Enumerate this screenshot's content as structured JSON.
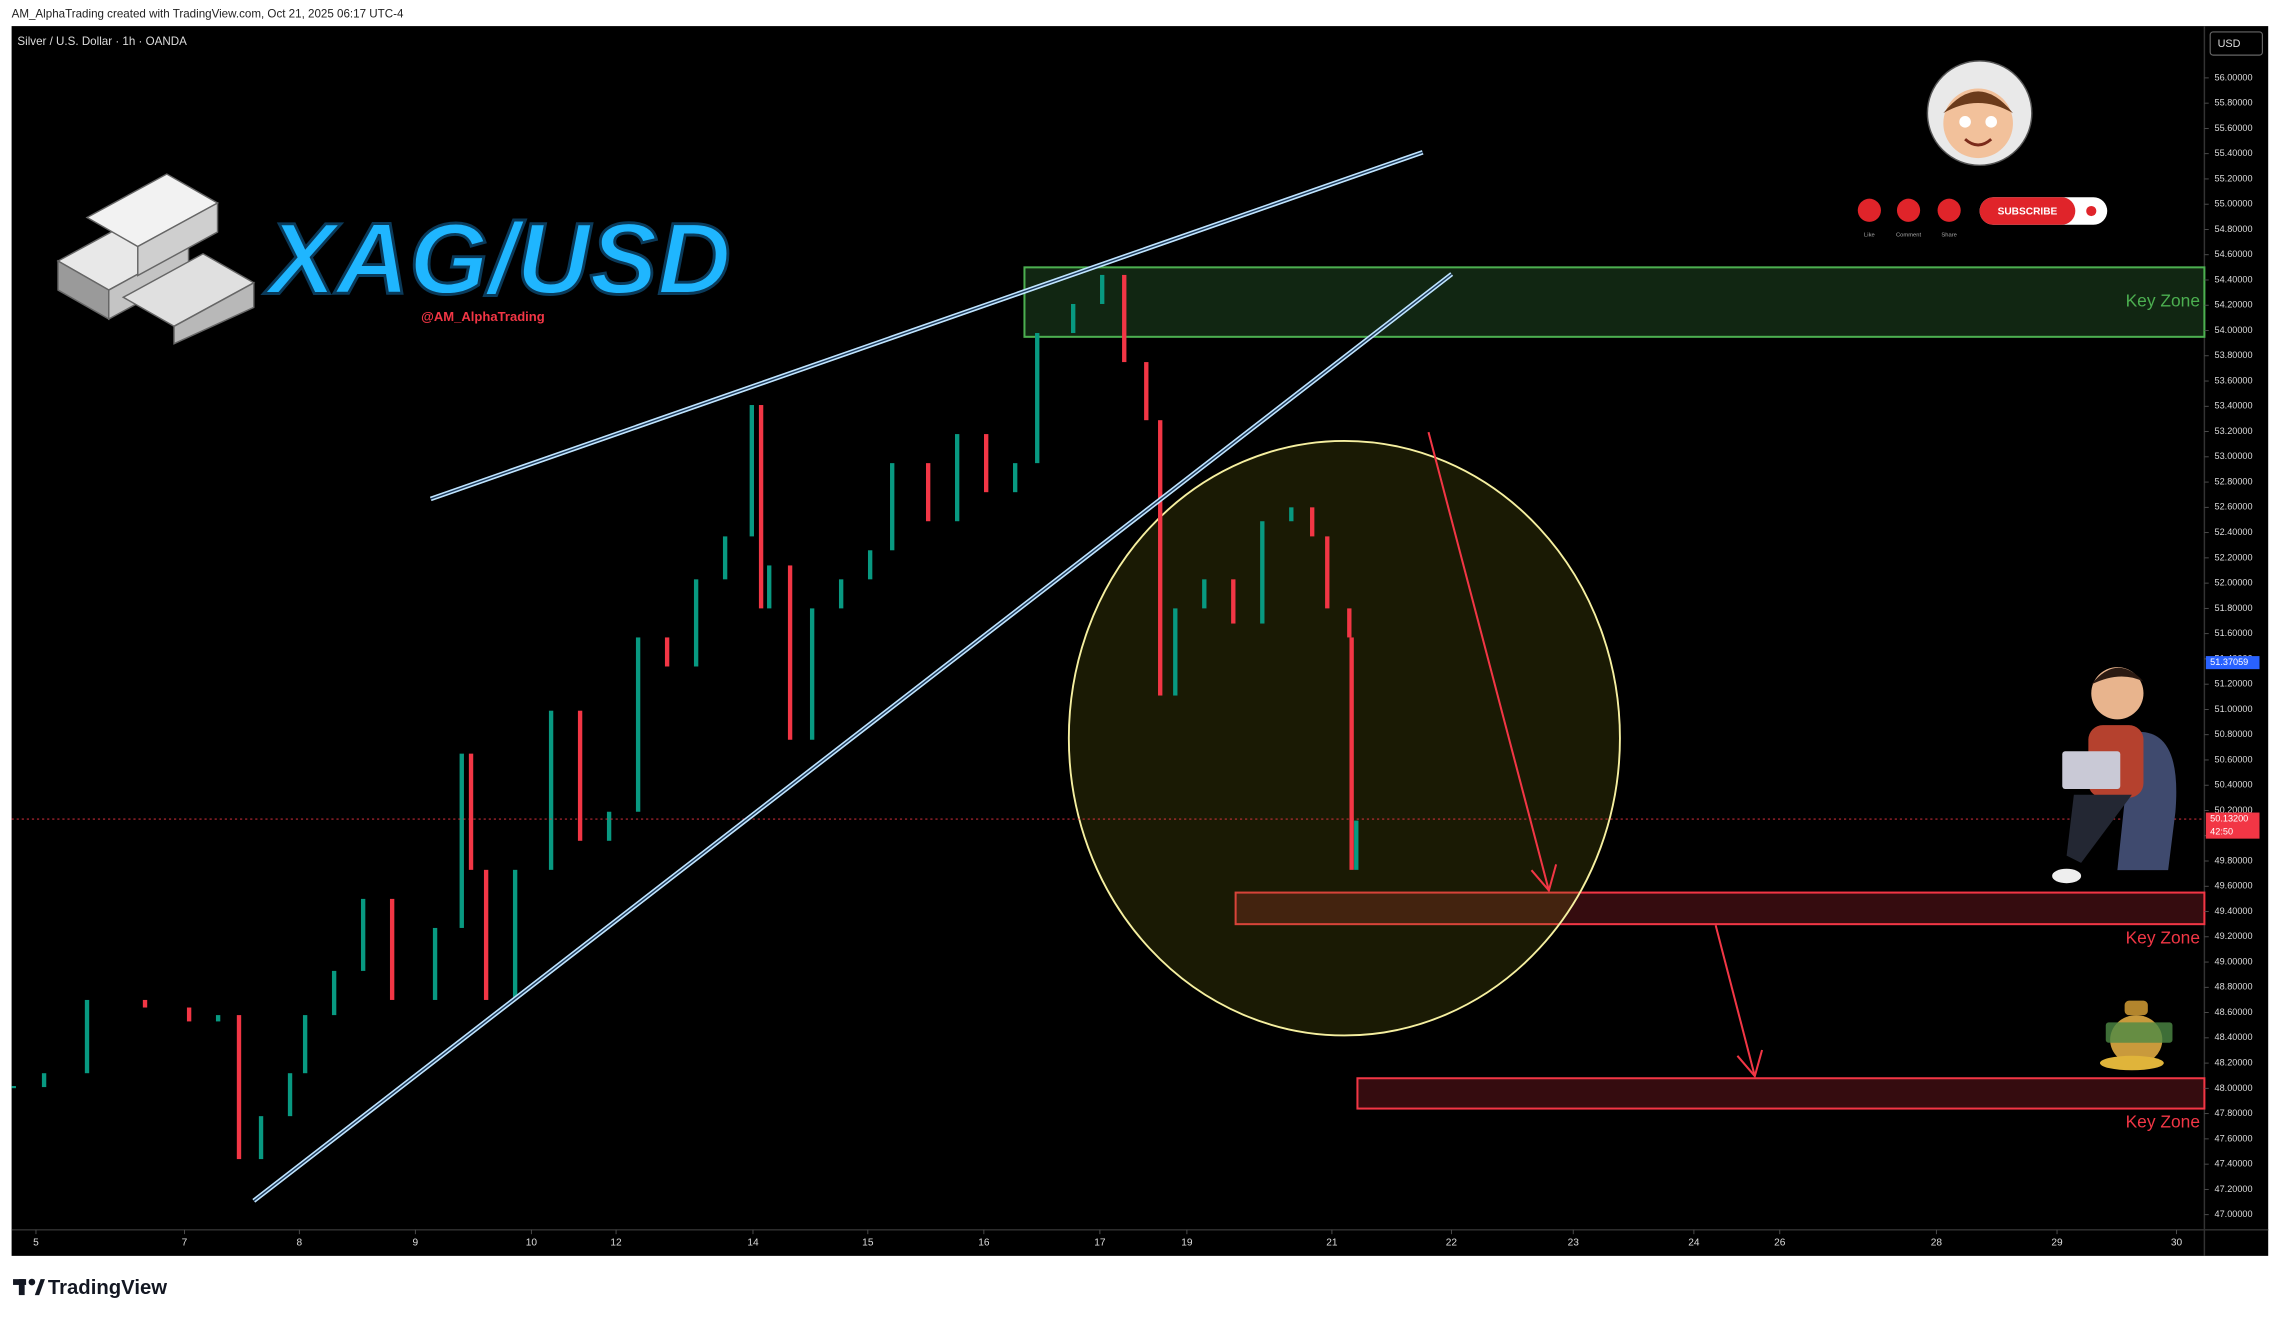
{
  "header": {
    "text": "AM_AlphaTrading created with TradingView.com, Oct 21, 2025 06:17 UTC-4"
  },
  "branding": {
    "logo": "XAG/USD",
    "handle": "@AM_AlphaTrading",
    "subscribe": "SUBSCRIBE",
    "like": "Like",
    "comment": "Comment",
    "share": "Share",
    "footer": "TradingView"
  },
  "chart_data": {
    "type": "candlestick",
    "title": "Silver / U.S. Dollar · 1h · OANDA",
    "currency": "USD",
    "x": [
      0,
      0.28,
      0.65,
      1.15,
      1.53,
      1.78,
      1.96,
      2.15,
      2.4,
      2.53,
      2.78,
      3.03,
      3.28,
      3.65,
      3.88,
      3.96,
      4.09,
      4.34,
      4.65,
      4.9,
      5.15,
      5.4,
      5.65,
      5.9,
      6.15,
      6.38,
      6.46,
      6.53,
      6.71,
      6.9,
      7.15,
      7.4,
      7.59,
      7.9,
      8.15,
      8.4,
      8.65,
      8.84,
      9.15,
      9.4,
      9.59,
      9.78,
      9.9,
      10.03,
      10.28,
      10.53,
      10.78,
      11.03,
      11.21,
      11.34,
      11.53,
      11.55,
      11.59
    ],
    "values": [
      48.01,
      48.12,
      48.7,
      48.64,
      48.53,
      48.58,
      47.44,
      47.78,
      48.12,
      48.58,
      48.93,
      49.5,
      48.7,
      49.27,
      50.65,
      49.73,
      48.7,
      49.73,
      50.99,
      49.96,
      50.19,
      51.57,
      51.34,
      52.03,
      52.37,
      53.41,
      51.8,
      52.14,
      50.76,
      51.8,
      52.03,
      52.26,
      52.95,
      52.49,
      53.18,
      52.72,
      52.95,
      53.98,
      54.21,
      54.44,
      53.75,
      53.29,
      51.11,
      51.8,
      52.03,
      51.68,
      52.49,
      52.6,
      52.37,
      51.8,
      51.57,
      49.73,
      50.12
    ],
    "up_color": "#089981",
    "down_color": "#f23645",
    "xlim": [
      0,
      18.9
    ],
    "xticks": [
      {
        "value": 0.21,
        "label": "5"
      },
      {
        "value": 1.49,
        "label": "7"
      },
      {
        "value": 2.48,
        "label": "8"
      },
      {
        "value": 3.48,
        "label": "9"
      },
      {
        "value": 4.48,
        "label": "10"
      },
      {
        "value": 5.21,
        "label": "12"
      },
      {
        "value": 6.39,
        "label": "14"
      },
      {
        "value": 7.38,
        "label": "15"
      },
      {
        "value": 8.38,
        "label": "16"
      },
      {
        "value": 9.38,
        "label": "17"
      },
      {
        "value": 10.13,
        "label": "19"
      },
      {
        "value": 11.38,
        "label": "21"
      },
      {
        "value": 12.41,
        "label": "22"
      },
      {
        "value": 13.46,
        "label": "23"
      },
      {
        "value": 14.5,
        "label": "24"
      },
      {
        "value": 15.24,
        "label": "26"
      },
      {
        "value": 16.59,
        "label": "28"
      },
      {
        "value": 17.63,
        "label": "29"
      },
      {
        "value": 18.66,
        "label": "30"
      }
    ],
    "ylim": [
      46.88,
      56.41
    ],
    "yticks": [
      {
        "value": 47,
        "label": "47.00000"
      },
      {
        "value": 47.2,
        "label": "47.20000"
      },
      {
        "value": 47.4,
        "label": "47.40000"
      },
      {
        "value": 47.6,
        "label": "47.60000"
      },
      {
        "value": 47.8,
        "label": "47.80000"
      },
      {
        "value": 48,
        "label": "48.00000"
      },
      {
        "value": 48.2,
        "label": "48.20000"
      },
      {
        "value": 48.4,
        "label": "48.40000"
      },
      {
        "value": 48.6,
        "label": "48.60000"
      },
      {
        "value": 48.8,
        "label": "48.80000"
      },
      {
        "value": 49,
        "label": "49.00000"
      },
      {
        "value": 49.2,
        "label": "49.20000"
      },
      {
        "value": 49.4,
        "label": "49.40000"
      },
      {
        "value": 49.6,
        "label": "49.60000"
      },
      {
        "value": 49.8,
        "label": "49.80000"
      },
      {
        "value": 50,
        "label": "50.00000"
      },
      {
        "value": 50.2,
        "label": "50.20000"
      },
      {
        "value": 50.4,
        "label": "50.40000"
      },
      {
        "value": 50.6,
        "label": "50.60000"
      },
      {
        "value": 50.8,
        "label": "50.80000"
      },
      {
        "value": 51,
        "label": "51.00000"
      },
      {
        "value": 51.2,
        "label": "51.20000"
      },
      {
        "value": 51.4,
        "label": "51.40000"
      },
      {
        "value": 51.6,
        "label": "51.60000"
      },
      {
        "value": 51.8,
        "label": "51.80000"
      },
      {
        "value": 52,
        "label": "52.00000"
      },
      {
        "value": 52.2,
        "label": "52.20000"
      },
      {
        "value": 52.4,
        "label": "52.40000"
      },
      {
        "value": 52.6,
        "label": "52.60000"
      },
      {
        "value": 52.8,
        "label": "52.80000"
      },
      {
        "value": 53,
        "label": "53.00000"
      },
      {
        "value": 53.2,
        "label": "53.20000"
      },
      {
        "value": 53.4,
        "label": "53.40000"
      },
      {
        "value": 53.6,
        "label": "53.60000"
      },
      {
        "value": 53.8,
        "label": "53.80000"
      },
      {
        "value": 54,
        "label": "54.00000"
      },
      {
        "value": 54.2,
        "label": "54.20000"
      },
      {
        "value": 54.4,
        "label": "54.40000"
      },
      {
        "value": 54.6,
        "label": "54.60000"
      },
      {
        "value": 54.8,
        "label": "54.80000"
      },
      {
        "value": 55,
        "label": "55.00000"
      },
      {
        "value": 55.2,
        "label": "55.20000"
      },
      {
        "value": 55.4,
        "label": "55.40000"
      },
      {
        "value": 55.6,
        "label": "55.60000"
      },
      {
        "value": 55.8,
        "label": "55.80000"
      },
      {
        "value": 56,
        "label": "56.00000"
      }
    ],
    "zones": [
      {
        "label": "Key Zone",
        "x_start": 8.73,
        "range": [
          53.95,
          54.5
        ],
        "color": "#4caf50"
      },
      {
        "label": "Key Zone",
        "x_start": 10.55,
        "range": [
          49.3,
          49.55
        ],
        "color": "#f23645"
      },
      {
        "label": "Key Zone",
        "x_start": 11.6,
        "range": [
          47.84,
          48.08
        ],
        "color": "#f23645"
      }
    ],
    "markers": [
      {
        "value": 51.37059,
        "label": "51.37059",
        "color": "#2962ff"
      },
      {
        "value": 50.132,
        "label": "50.13200",
        "countdown": "42:50",
        "color": "#f23645"
      }
    ]
  }
}
